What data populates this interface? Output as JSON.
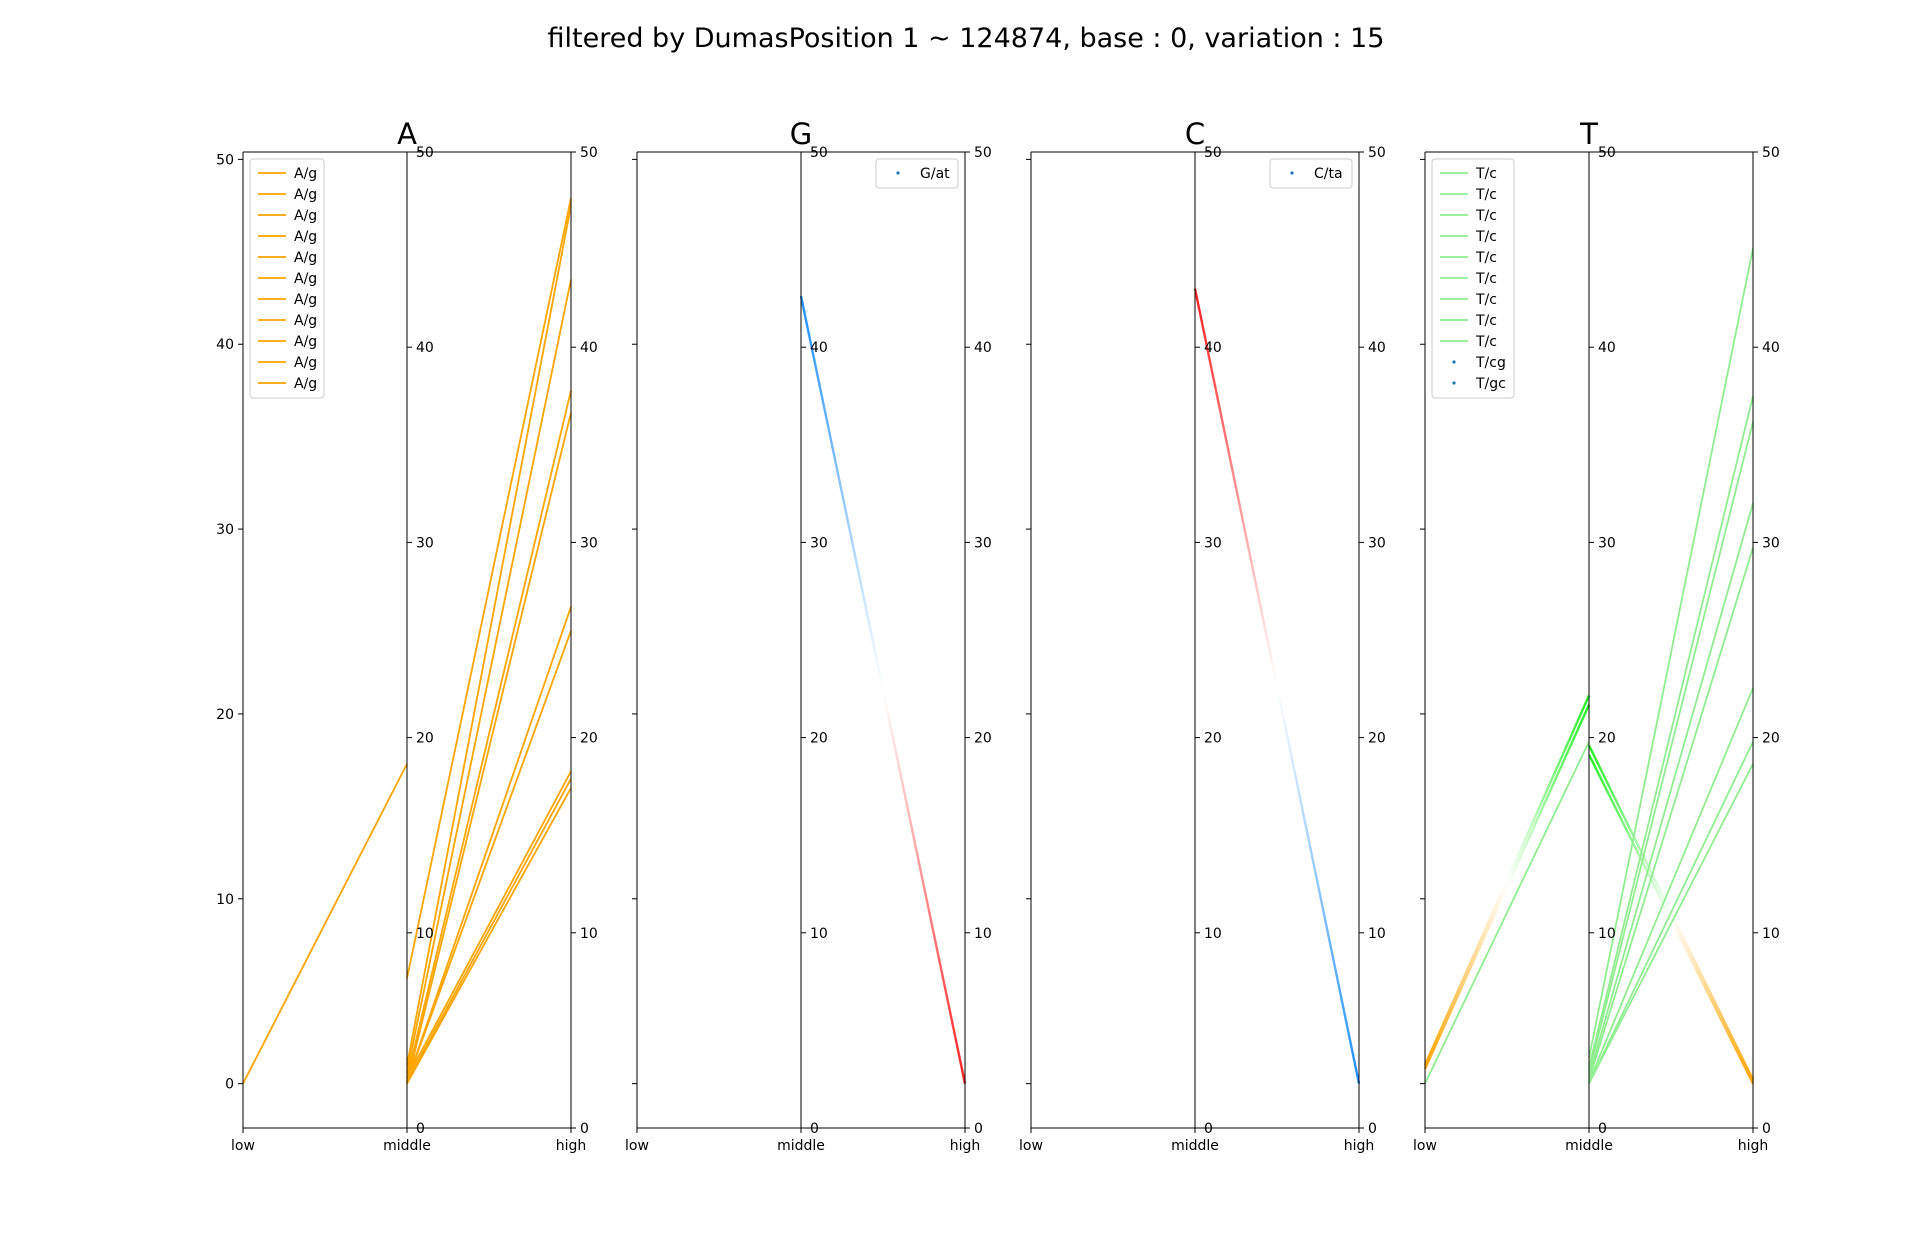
{
  "figure": {
    "suptitle": "filtered by DumasPosition 1 ~ 124874, base : 0, variation : 15"
  },
  "chart_data": [
    {
      "type": "line",
      "title": "A",
      "categories": [
        "low",
        "middle",
        "high"
      ],
      "ylim": [
        -2.4,
        50.4
      ],
      "yticks": [
        0,
        10,
        20,
        30,
        40,
        50
      ],
      "right_axes_ylim": [
        0,
        50
      ],
      "right_axes_ticks": [
        0,
        10,
        20,
        30,
        40,
        50
      ],
      "legend": {
        "placement": "upper-left",
        "entries": [
          {
            "label": "A/g",
            "marker": "line",
            "color": "#ffa500"
          },
          {
            "label": "A/g",
            "marker": "line",
            "color": "#ffa500"
          },
          {
            "label": "A/g",
            "marker": "line",
            "color": "#ffa500"
          },
          {
            "label": "A/g",
            "marker": "line",
            "color": "#ffa500"
          },
          {
            "label": "A/g",
            "marker": "line",
            "color": "#ffa500"
          },
          {
            "label": "A/g",
            "marker": "line",
            "color": "#ffa500"
          },
          {
            "label": "A/g",
            "marker": "line",
            "color": "#ffa500"
          },
          {
            "label": "A/g",
            "marker": "line",
            "color": "#ffa500"
          },
          {
            "label": "A/g",
            "marker": "line",
            "color": "#ffa500"
          },
          {
            "label": "A/g",
            "marker": "line",
            "color": "#ffa500"
          },
          {
            "label": "A/g",
            "marker": "line",
            "color": "#ffa500"
          }
        ]
      },
      "segments": [
        {
          "x": [
            "low",
            "middle"
          ],
          "y": [
            0,
            17.3
          ],
          "color": "#ffa500"
        },
        {
          "x": [
            "middle",
            "high"
          ],
          "y": [
            5.7,
            47.9
          ],
          "color": "#ffa500"
        },
        {
          "x": [
            "middle",
            "high"
          ],
          "y": [
            1.0,
            47.5
          ],
          "color": "#ffa500"
        },
        {
          "x": [
            "middle",
            "high"
          ],
          "y": [
            0.6,
            43.5
          ],
          "color": "#ffa500"
        },
        {
          "x": [
            "middle",
            "high"
          ],
          "y": [
            0.3,
            37.5
          ],
          "color": "#ffa500"
        },
        {
          "x": [
            "middle",
            "high"
          ],
          "y": [
            0.0,
            36.3
          ],
          "color": "#ffa500"
        },
        {
          "x": [
            "middle",
            "high"
          ],
          "y": [
            0.1,
            25.8
          ],
          "color": "#ffa500"
        },
        {
          "x": [
            "middle",
            "high"
          ],
          "y": [
            0.1,
            24.5
          ],
          "color": "#ffa500"
        },
        {
          "x": [
            "middle",
            "high"
          ],
          "y": [
            0.3,
            16.9
          ],
          "color": "#ffa500"
        },
        {
          "x": [
            "middle",
            "high"
          ],
          "y": [
            0.1,
            16.5
          ],
          "color": "#ffa500"
        },
        {
          "x": [
            "middle",
            "high"
          ],
          "y": [
            0.0,
            16.0
          ],
          "color": "#ffa500"
        }
      ]
    },
    {
      "type": "line",
      "title": "G",
      "categories": [
        "low",
        "middle",
        "high"
      ],
      "ylim": [
        -2.4,
        50.4
      ],
      "yticks": [
        0,
        10,
        20,
        30,
        40,
        50
      ],
      "show_ytick_labels": false,
      "right_axes_ylim": [
        0,
        50
      ],
      "right_axes_ticks": [
        0,
        10,
        20,
        30,
        40,
        50
      ],
      "legend": {
        "placement": "upper-right",
        "entries": [
          {
            "label": "G/at",
            "marker": "dot",
            "color": "#1f77b4"
          }
        ]
      },
      "segments": [
        {
          "x": [
            "middle",
            "high"
          ],
          "y": [
            42.6,
            0.0
          ],
          "gradient": [
            "#1e90ff",
            "#ffffff",
            "#ff2020"
          ]
        }
      ]
    },
    {
      "type": "line",
      "title": "C",
      "categories": [
        "low",
        "middle",
        "high"
      ],
      "ylim": [
        -2.4,
        50.4
      ],
      "yticks": [
        0,
        10,
        20,
        30,
        40,
        50
      ],
      "show_ytick_labels": false,
      "right_axes_ylim": [
        0,
        50
      ],
      "right_axes_ticks": [
        0,
        10,
        20,
        30,
        40,
        50
      ],
      "legend": {
        "placement": "upper-right",
        "entries": [
          {
            "label": "C/ta",
            "marker": "dot",
            "color": "#1f77b4"
          }
        ]
      },
      "segments": [
        {
          "x": [
            "middle",
            "high"
          ],
          "y": [
            43.0,
            0.0
          ],
          "gradient": [
            "#ff2020",
            "#ffffff",
            "#1e90ff"
          ]
        }
      ]
    },
    {
      "type": "line",
      "title": "T",
      "categories": [
        "low",
        "middle",
        "high"
      ],
      "ylim": [
        -2.4,
        50.4
      ],
      "yticks": [
        0,
        10,
        20,
        30,
        40,
        50
      ],
      "show_ytick_labels": false,
      "right_axes_ylim": [
        0,
        50
      ],
      "right_axes_ticks": [
        0,
        10,
        20,
        30,
        40,
        50
      ],
      "legend": {
        "placement": "upper-left",
        "entries": [
          {
            "label": "T/c",
            "marker": "line",
            "color": "#90ee90"
          },
          {
            "label": "T/c",
            "marker": "line",
            "color": "#90ee90"
          },
          {
            "label": "T/c",
            "marker": "line",
            "color": "#90ee90"
          },
          {
            "label": "T/c",
            "marker": "line",
            "color": "#90ee90"
          },
          {
            "label": "T/c",
            "marker": "line",
            "color": "#90ee90"
          },
          {
            "label": "T/c",
            "marker": "line",
            "color": "#90ee90"
          },
          {
            "label": "T/c",
            "marker": "line",
            "color": "#90ee90"
          },
          {
            "label": "T/c",
            "marker": "line",
            "color": "#90ee90"
          },
          {
            "label": "T/c",
            "marker": "line",
            "color": "#90ee90"
          },
          {
            "label": "T/cg",
            "marker": "dot",
            "color": "#1f77b4"
          },
          {
            "label": "T/gc",
            "marker": "dot",
            "color": "#1f77b4"
          }
        ]
      },
      "segments": [
        {
          "x": [
            "low",
            "middle"
          ],
          "y": [
            1.0,
            21.0
          ],
          "gradient": [
            "#ffa500",
            "#ffffff",
            "#22ee22"
          ]
        },
        {
          "x": [
            "low",
            "middle"
          ],
          "y": [
            0.8,
            20.5
          ],
          "gradient": [
            "#ffa500",
            "#ffffff",
            "#22ee22"
          ]
        },
        {
          "x": [
            "low",
            "middle"
          ],
          "y": [
            0.0,
            18.5
          ],
          "color": "#90ee90"
        },
        {
          "x": [
            "middle",
            "high"
          ],
          "y": [
            18.3,
            0.2
          ],
          "gradient": [
            "#22ee22",
            "#ffffff",
            "#ffa500"
          ]
        },
        {
          "x": [
            "middle",
            "high"
          ],
          "y": [
            17.8,
            0.0
          ],
          "gradient": [
            "#22ee22",
            "#ffffff",
            "#ffa500"
          ]
        },
        {
          "x": [
            "middle",
            "high"
          ],
          "y": [
            1.4,
            45.2
          ],
          "color": "#90ee90"
        },
        {
          "x": [
            "middle",
            "high"
          ],
          "y": [
            0.9,
            37.2
          ],
          "color": "#90ee90"
        },
        {
          "x": [
            "middle",
            "high"
          ],
          "y": [
            0.6,
            35.8
          ],
          "color": "#90ee90"
        },
        {
          "x": [
            "middle",
            "high"
          ],
          "y": [
            0.4,
            31.4
          ],
          "color": "#90ee90"
        },
        {
          "x": [
            "middle",
            "high"
          ],
          "y": [
            0.2,
            29.0
          ],
          "color": "#90ee90"
        },
        {
          "x": [
            "middle",
            "high"
          ],
          "y": [
            0.1,
            21.4
          ],
          "color": "#90ee90"
        },
        {
          "x": [
            "middle",
            "high"
          ],
          "y": [
            0.0,
            18.5
          ],
          "color": "#90ee90"
        },
        {
          "x": [
            "middle",
            "high"
          ],
          "y": [
            0.0,
            17.3
          ],
          "color": "#90ee90"
        }
      ]
    }
  ]
}
